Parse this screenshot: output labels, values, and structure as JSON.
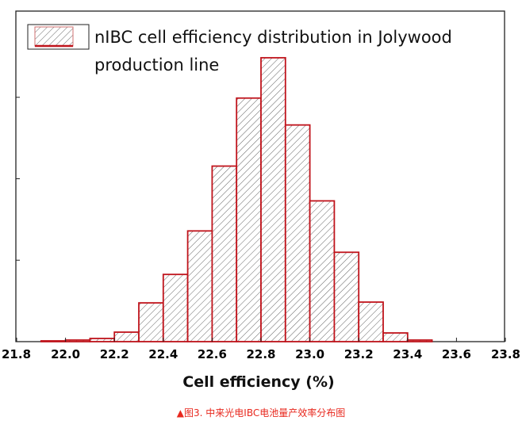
{
  "chart_data": {
    "type": "bar",
    "title": "",
    "legend": {
      "label_line1": "nIBC cell efficiency distribution in Jolywood",
      "label_line2": "production line",
      "placement": "top-left"
    },
    "xlabel": "Cell efficiency (%)",
    "ylabel": "",
    "xlim": [
      21.8,
      23.8
    ],
    "ylim": [
      0,
      418
    ],
    "xticks": [
      "21.8",
      "22.0",
      "22.2",
      "22.4",
      "22.6",
      "22.8",
      "23.0",
      "23.2",
      "23.4",
      "23.6",
      "23.8"
    ],
    "bin_width": 0.1,
    "bin_starts": [
      21.9,
      22.0,
      22.1,
      22.2,
      22.3,
      22.4,
      22.5,
      22.6,
      22.7,
      22.8,
      22.9,
      23.0,
      23.1,
      23.2,
      23.3,
      23.4
    ],
    "values": [
      1,
      2,
      4,
      12,
      49,
      85,
      140,
      222,
      308,
      359,
      274,
      178,
      113,
      50,
      11,
      2
    ],
    "bar_color": "#c0141c",
    "caption": "▲图3. 中来光电IBC电池量产效率分布图",
    "caption_color": "#e8281e"
  }
}
